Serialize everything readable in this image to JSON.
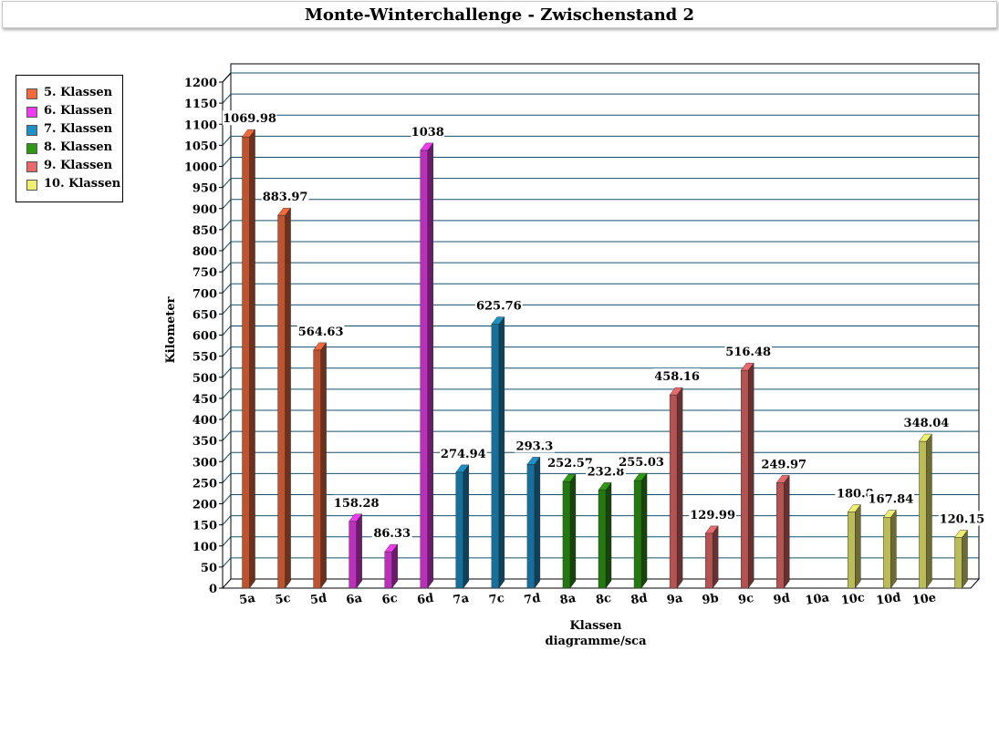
{
  "chart_data": {
    "type": "bar",
    "title": "Monte-Winterchallenge - Zwischenstand 2",
    "xlabel": "Klassen",
    "xlabel_sub": "diagramme/sca",
    "ylabel": "Kilometer",
    "ylim": [
      0,
      1200
    ],
    "yticks": [
      0,
      50,
      100,
      150,
      200,
      250,
      300,
      350,
      400,
      450,
      500,
      550,
      600,
      650,
      700,
      750,
      800,
      850,
      900,
      950,
      1000,
      1050,
      1100,
      1150,
      1200
    ],
    "grid": true,
    "legend_position": "top-left",
    "legend": [
      {
        "label": "5. Klassen",
        "color": "#f26a3c"
      },
      {
        "label": "6. Klassen",
        "color": "#f03cf0"
      },
      {
        "label": "7. Klassen",
        "color": "#1e90c8"
      },
      {
        "label": "8. Klassen",
        "color": "#2e9a14"
      },
      {
        "label": "9. Klassen",
        "color": "#e86a6a"
      },
      {
        "label": "10. Klassen",
        "color": "#f0f070"
      }
    ],
    "bars": [
      {
        "category": "5a",
        "value": 1069.98,
        "label": "1069.98",
        "group": 0
      },
      {
        "category": "5c",
        "value": 883.97,
        "label": "883.97",
        "group": 0
      },
      {
        "category": "5d",
        "value": 564.63,
        "label": "564.63",
        "group": 0
      },
      {
        "category": "6a",
        "value": 158.28,
        "label": "158.28",
        "group": 1
      },
      {
        "category": "6c",
        "value": 86.33,
        "label": "86.33",
        "group": 1
      },
      {
        "category": "6d",
        "value": 1038,
        "label": "1038",
        "group": 1
      },
      {
        "category": "7a",
        "value": 274.94,
        "label": "274.94",
        "group": 2
      },
      {
        "category": "7c",
        "value": 625.76,
        "label": "625.76",
        "group": 2
      },
      {
        "category": "7d",
        "value": 293.3,
        "label": "293.3",
        "group": 2
      },
      {
        "category": "8a",
        "value": 252.57,
        "label": "252.57",
        "group": 3
      },
      {
        "category": "8c",
        "value": 232.8,
        "label": "232.8",
        "group": 3
      },
      {
        "category": "8d",
        "value": 255.03,
        "label": "255.03",
        "group": 3
      },
      {
        "category": "9a",
        "value": 458.16,
        "label": "458.16",
        "group": 4
      },
      {
        "category": "9b",
        "value": 129.99,
        "label": "129.99",
        "group": 4
      },
      {
        "category": "9c",
        "value": 516.48,
        "label": "516.48",
        "group": 4
      },
      {
        "category": "9d",
        "value": 249.97,
        "label": "249.97",
        "group": 4
      },
      {
        "category": "10a",
        "value": 0,
        "label": "",
        "group": 5
      },
      {
        "category": "10c",
        "value": 180.8,
        "label": "180.8",
        "group": 5
      },
      {
        "category": "10d",
        "value": 167.84,
        "label": "167.84",
        "group": 5
      },
      {
        "category": "10e",
        "value": 348.04,
        "label": "348.04",
        "group": 5
      },
      {
        "category": "",
        "value": 120.15,
        "label": "120.15",
        "group": 5
      }
    ]
  }
}
